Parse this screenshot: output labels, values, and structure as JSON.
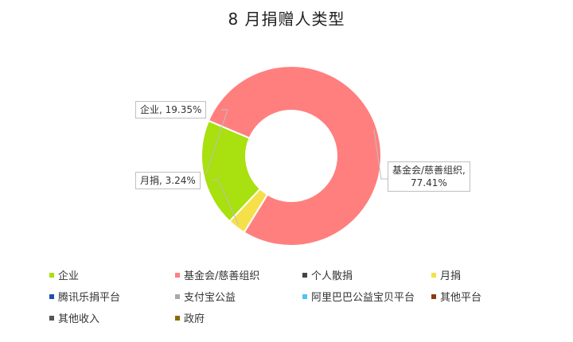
{
  "chart_data": {
    "type": "pie",
    "variant": "donut",
    "title": "8 月捐赠人类型",
    "slices": [
      {
        "label": "基金会/慈善组织",
        "value": 77.41,
        "display": "77.41%",
        "color": "#FF7F7F"
      },
      {
        "label": "月捐",
        "value": 3.24,
        "display": "3.24%",
        "color": "#F5E04A"
      },
      {
        "label": "企业",
        "value": 19.35,
        "display": "19.35%",
        "color": "#A8E010"
      }
    ],
    "legend": {
      "placement": "bottom",
      "entries": [
        {
          "label": "企业",
          "color": "#A8E010"
        },
        {
          "label": "基金会/慈善组织",
          "color": "#FF7F7F"
        },
        {
          "label": "个人散捐",
          "color": "#444444"
        },
        {
          "label": "月捐",
          "color": "#F5E04A"
        },
        {
          "label": "腾讯乐捐平台",
          "color": "#1F4EB4"
        },
        {
          "label": "支付宝公益",
          "color": "#AAAAAA"
        },
        {
          "label": "阿里巴巴公益宝贝平台",
          "color": "#4FC3F7"
        },
        {
          "label": "其他平台",
          "color": "#8B3A0E"
        },
        {
          "label": "其他收入",
          "color": "#555555"
        },
        {
          "label": "政府",
          "color": "#8B6A00"
        }
      ]
    }
  }
}
